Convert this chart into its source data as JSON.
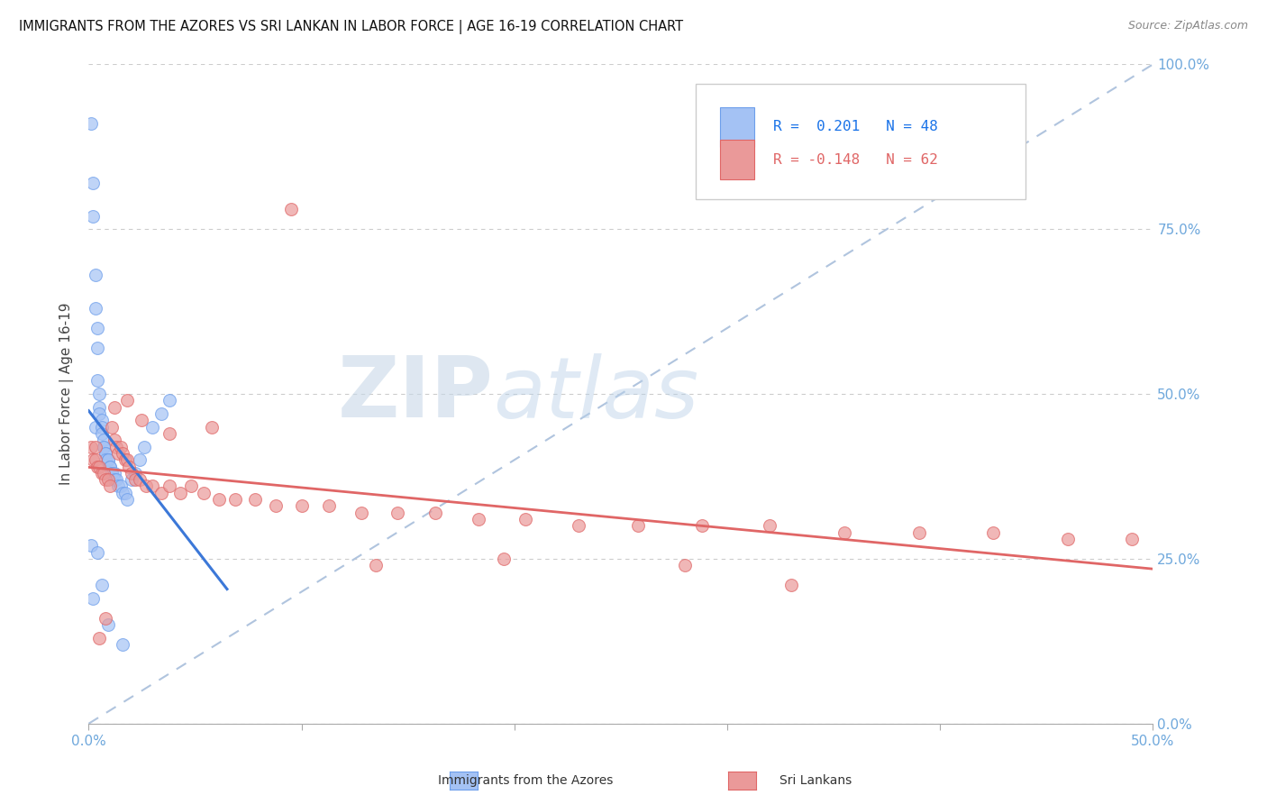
{
  "title": "IMMIGRANTS FROM THE AZORES VS SRI LANKAN IN LABOR FORCE | AGE 16-19 CORRELATION CHART",
  "source": "Source: ZipAtlas.com",
  "ylabel": "In Labor Force | Age 16-19",
  "x_min": 0.0,
  "x_max": 0.5,
  "y_min": 0.0,
  "y_max": 1.0,
  "legend_labels": [
    "Immigrants from the Azores",
    "Sri Lankans"
  ],
  "blue_R": 0.201,
  "blue_N": 48,
  "pink_R": -0.148,
  "pink_N": 62,
  "blue_fill": "#a4c2f4",
  "blue_edge": "#6d9eeb",
  "pink_fill": "#ea9999",
  "pink_edge": "#e06666",
  "blue_line_color": "#3c78d8",
  "pink_line_color": "#e06666",
  "diag_color": "#b0c4de",
  "grid_color": "#cccccc",
  "tick_color": "#6fa8dc",
  "watermark_zip": "ZIP",
  "watermark_atlas": "atlas",
  "blue_x": [
    0.001,
    0.002,
    0.002,
    0.003,
    0.003,
    0.003,
    0.004,
    0.004,
    0.004,
    0.005,
    0.005,
    0.005,
    0.006,
    0.006,
    0.006,
    0.007,
    0.007,
    0.007,
    0.008,
    0.008,
    0.008,
    0.009,
    0.009,
    0.01,
    0.01,
    0.011,
    0.011,
    0.012,
    0.012,
    0.013,
    0.014,
    0.015,
    0.016,
    0.017,
    0.018,
    0.02,
    0.022,
    0.024,
    0.026,
    0.03,
    0.034,
    0.038,
    0.001,
    0.002,
    0.004,
    0.006,
    0.009,
    0.016
  ],
  "blue_y": [
    0.91,
    0.82,
    0.77,
    0.68,
    0.63,
    0.45,
    0.6,
    0.57,
    0.52,
    0.5,
    0.48,
    0.47,
    0.46,
    0.45,
    0.44,
    0.43,
    0.42,
    0.42,
    0.41,
    0.41,
    0.4,
    0.4,
    0.4,
    0.39,
    0.39,
    0.38,
    0.38,
    0.38,
    0.37,
    0.37,
    0.36,
    0.36,
    0.35,
    0.35,
    0.34,
    0.37,
    0.38,
    0.4,
    0.42,
    0.45,
    0.47,
    0.49,
    0.27,
    0.19,
    0.26,
    0.21,
    0.15,
    0.12
  ],
  "pink_x": [
    0.001,
    0.002,
    0.003,
    0.004,
    0.005,
    0.006,
    0.007,
    0.008,
    0.009,
    0.01,
    0.011,
    0.012,
    0.013,
    0.014,
    0.015,
    0.016,
    0.017,
    0.018,
    0.019,
    0.02,
    0.022,
    0.024,
    0.027,
    0.03,
    0.034,
    0.038,
    0.043,
    0.048,
    0.054,
    0.061,
    0.069,
    0.078,
    0.088,
    0.1,
    0.113,
    0.128,
    0.145,
    0.163,
    0.183,
    0.205,
    0.23,
    0.258,
    0.288,
    0.32,
    0.355,
    0.39,
    0.425,
    0.46,
    0.49,
    0.012,
    0.018,
    0.025,
    0.038,
    0.058,
    0.095,
    0.135,
    0.195,
    0.008,
    0.28,
    0.33,
    0.003,
    0.005
  ],
  "pink_y": [
    0.42,
    0.4,
    0.4,
    0.39,
    0.39,
    0.38,
    0.38,
    0.37,
    0.37,
    0.36,
    0.45,
    0.43,
    0.42,
    0.41,
    0.42,
    0.41,
    0.4,
    0.4,
    0.39,
    0.38,
    0.37,
    0.37,
    0.36,
    0.36,
    0.35,
    0.36,
    0.35,
    0.36,
    0.35,
    0.34,
    0.34,
    0.34,
    0.33,
    0.33,
    0.33,
    0.32,
    0.32,
    0.32,
    0.31,
    0.31,
    0.3,
    0.3,
    0.3,
    0.3,
    0.29,
    0.29,
    0.29,
    0.28,
    0.28,
    0.48,
    0.49,
    0.46,
    0.44,
    0.45,
    0.78,
    0.24,
    0.25,
    0.16,
    0.24,
    0.21,
    0.42,
    0.13
  ]
}
